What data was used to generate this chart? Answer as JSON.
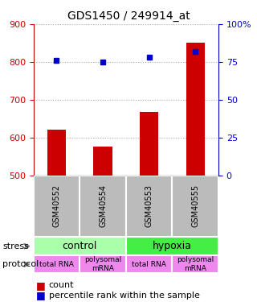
{
  "title": "GDS1450 / 249914_at",
  "samples": [
    "GSM40552",
    "GSM40554",
    "GSM40553",
    "GSM40555"
  ],
  "counts": [
    620,
    575,
    668,
    851
  ],
  "percentiles": [
    76,
    75,
    78,
    82
  ],
  "ylim_left": [
    500,
    900
  ],
  "ylim_right": [
    0,
    100
  ],
  "yticks_left": [
    500,
    600,
    700,
    800,
    900
  ],
  "yticks_right": [
    0,
    25,
    50,
    75,
    100
  ],
  "bar_color": "#cc0000",
  "dot_color": "#0000cc",
  "stress_data": [
    {
      "label": "control",
      "start": 0,
      "end": 2,
      "color": "#aaffaa"
    },
    {
      "label": "hypoxia",
      "start": 2,
      "end": 4,
      "color": "#44ee44"
    }
  ],
  "protocol_labels": [
    "total RNA",
    "polysomal\nmRNA",
    "total RNA",
    "polysomal\nmRNA"
  ],
  "protocol_color": "#ee88ee",
  "sample_bg_color": "#bbbbbb",
  "legend_count_color": "#cc0000",
  "legend_pct_color": "#0000cc",
  "right_axis_color": "#0000cc",
  "left_axis_color": "#cc0000",
  "grid_color": "#aaaaaa"
}
